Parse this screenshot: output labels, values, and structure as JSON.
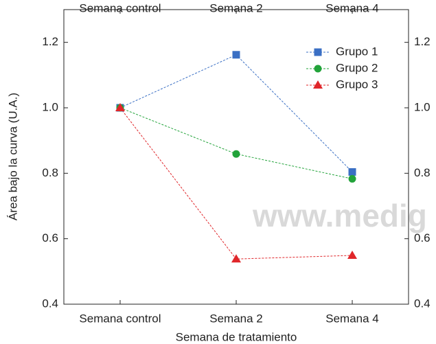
{
  "chart_data": {
    "type": "line",
    "x_label": "Semana de tratamiento",
    "y_label": "Área bajo la curva (U.A.)",
    "watermark": "www.medig",
    "categories": [
      "Semana control",
      "Semana 2",
      "Semana 4"
    ],
    "series": [
      {
        "name": "Grupo 1",
        "color": "#3a6fc4",
        "marker": "square",
        "values": [
          1.0,
          1.162,
          0.804
        ]
      },
      {
        "name": "Grupo 2",
        "color": "#22a33a",
        "marker": "circle",
        "values": [
          1.0,
          0.859,
          0.783
        ]
      },
      {
        "name": "Grupo 3",
        "color": "#e0262a",
        "marker": "triangle",
        "values": [
          1.0,
          0.538,
          0.549
        ]
      }
    ],
    "ylim": [
      0.4,
      1.3
    ],
    "yticks": [
      {
        "value": 0.4,
        "label": "0.4"
      },
      {
        "value": 0.6,
        "label": "0.6"
      },
      {
        "value": 0.8,
        "label": "0.8"
      },
      {
        "value": 1.0,
        "label": "1.0"
      },
      {
        "value": 1.2,
        "label": "1.2"
      }
    ],
    "legend": "upper right",
    "grid": false
  }
}
